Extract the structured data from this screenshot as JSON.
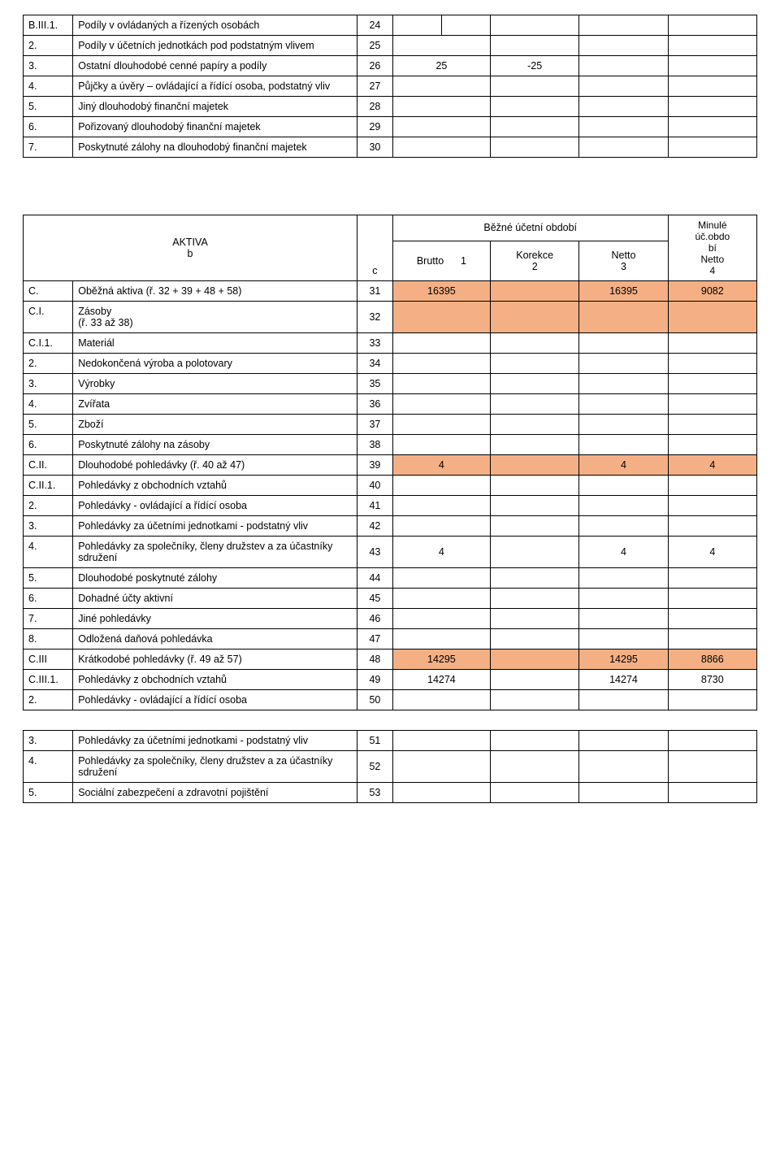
{
  "colors": {
    "highlight": "#f4b084",
    "border": "#000000",
    "bg": "#ffffff"
  },
  "colwidths": {
    "code": 56,
    "name": 320,
    "c": 40,
    "brutto": 110,
    "korekce": 100,
    "netto": 100,
    "minule": 100
  },
  "top": {
    "rows": [
      {
        "code": "B.III.1.",
        "name": "Podíly v ovládaných a řízených osobách",
        "c": "24",
        "brutto": "",
        "bruttoSplit": true,
        "korekce": "",
        "netto": "",
        "minule": ""
      },
      {
        "code": "2.",
        "name": "Podíly v účetních jednotkách pod podstatným vlivem",
        "c": "25",
        "brutto": "",
        "korekce": "",
        "netto": "",
        "minule": ""
      },
      {
        "code": "3.",
        "name": "Ostatní dlouhodobé cenné papíry a podíly",
        "c": "26",
        "brutto": "25",
        "korekce": "-25",
        "netto": "",
        "minule": ""
      },
      {
        "code": "4.",
        "name": "Půjčky a úvěry – ovládající a řídící osoba, podstatný vliv",
        "c": "27",
        "brutto": "",
        "korekce": "",
        "netto": "",
        "minule": ""
      },
      {
        "code": "5.",
        "name": "Jiný dlouhodobý finanční majetek",
        "c": "28",
        "brutto": "",
        "korekce": "",
        "netto": "",
        "minule": ""
      },
      {
        "code": "6.",
        "name": "Pořizovaný dlouhodobý finanční majetek",
        "c": "29",
        "brutto": "",
        "korekce": "",
        "netto": "",
        "minule": ""
      },
      {
        "code": "7.",
        "name": "Poskytnuté zálohy na dlouhodobý finanční majetek",
        "c": "30",
        "brutto": "",
        "korekce": "",
        "netto": "",
        "minule": ""
      }
    ]
  },
  "header": {
    "aktiva_label": "AKTIVA",
    "aktiva_sub": "b",
    "c_label": "c",
    "period_label": "Běžné účetní období",
    "brutto_label": "Brutto",
    "brutto_num": "1",
    "korekce_label": "Korekce",
    "korekce_num": "2",
    "netto_label": "Netto",
    "netto_num": "3",
    "minule_line1": "Minulé",
    "minule_line2": "úč.obdo",
    "minule_line3": "bí",
    "minule_line4": "Netto",
    "minule_line5": "4"
  },
  "bottom": {
    "rows": [
      {
        "code": "C.",
        "name": "Oběžná aktiva                              (ř. 32 + 39 + 48 + 58)",
        "c": "31",
        "brutto": "16395",
        "korekce": "",
        "netto": "16395",
        "minule": "9082",
        "hl": true
      },
      {
        "code": "C.I.",
        "name": "Zásoby\n(ř. 33 až 38)",
        "c": "32",
        "brutto": "",
        "korekce": "",
        "netto": "",
        "minule": "",
        "hl": true
      },
      {
        "code": "C.I.1.",
        "name": "Materiál",
        "c": "33",
        "brutto": "",
        "korekce": "",
        "netto": "",
        "minule": ""
      },
      {
        "code": "2.",
        "name": "Nedokončená výroba a polotovary",
        "c": "34",
        "brutto": "",
        "korekce": "",
        "netto": "",
        "minule": ""
      },
      {
        "code": "3.",
        "name": "Výrobky",
        "c": "35",
        "brutto": "",
        "korekce": "",
        "netto": "",
        "minule": ""
      },
      {
        "code": "4.",
        "name": "Zvířata",
        "c": "36",
        "brutto": "",
        "korekce": "",
        "netto": "",
        "minule": ""
      },
      {
        "code": "5.",
        "name": "Zboží",
        "c": "37",
        "brutto": "",
        "korekce": "",
        "netto": "",
        "minule": ""
      },
      {
        "code": "6.",
        "name": "Poskytnuté zálohy na zásoby",
        "c": "38",
        "brutto": "",
        "korekce": "",
        "netto": "",
        "minule": ""
      },
      {
        "code": "C.II.",
        "name": "Dlouhodobé pohledávky                      (ř. 40 až 47)",
        "c": "39",
        "brutto": "4",
        "korekce": "",
        "netto": "4",
        "minule": "4",
        "hl": true
      },
      {
        "code": "C.II.1.",
        "name": "Pohledávky z obchodních vztahů",
        "c": "40",
        "brutto": "",
        "korekce": "",
        "netto": "",
        "minule": ""
      },
      {
        "code": "2.",
        "name": "Pohledávky -  ovládající a řídící osoba",
        "c": "41",
        "brutto": "",
        "korekce": "",
        "netto": "",
        "minule": ""
      },
      {
        "code": "3.",
        "name": "Pohledávky za účetními jednotkami - podstatný vliv",
        "c": "42",
        "brutto": "",
        "korekce": "",
        "netto": "",
        "minule": ""
      },
      {
        "code": "4.",
        "name": "Pohledávky za společníky, členy družstev a za účastníky sdružení",
        "c": "43",
        "brutto": "4",
        "korekce": "",
        "netto": "4",
        "minule": "4"
      },
      {
        "code": "5.",
        "name": "Dlouhodobé poskytnuté zálohy",
        "c": "44",
        "brutto": "",
        "korekce": "",
        "netto": "",
        "minule": ""
      },
      {
        "code": "6.",
        "name": "Dohadné účty aktivní",
        "c": "45",
        "brutto": "",
        "korekce": "",
        "netto": "",
        "minule": ""
      },
      {
        "code": "7.",
        "name": "Jiné pohledávky",
        "c": "46",
        "brutto": "",
        "korekce": "",
        "netto": "",
        "minule": ""
      },
      {
        "code": "8.",
        "name": "Odložená daňová pohledávka",
        "c": "47",
        "brutto": "",
        "korekce": "",
        "netto": "",
        "minule": ""
      },
      {
        "code": "C.III",
        "name": "Krátkodobé pohledávky               (ř. 49 až 57)",
        "c": "48",
        "brutto": "14295",
        "korekce": "",
        "netto": "14295",
        "minule": "8866",
        "hl": true
      },
      {
        "code": "C.III.1.",
        "name": "Pohledávky z obchodních vztahů",
        "c": "49",
        "brutto": "14274",
        "korekce": "",
        "netto": "14274",
        "minule": "8730"
      },
      {
        "code": "2.",
        "name": "Pohledávky - ovládající a řídící osoba",
        "c": "50",
        "brutto": "",
        "korekce": "",
        "netto": "",
        "minule": ""
      },
      {
        "blank": true
      },
      {
        "code": "3.",
        "name": "Pohledávky za účetními jednotkami - podstatný vliv",
        "c": "51",
        "brutto": "",
        "korekce": "",
        "netto": "",
        "minule": ""
      },
      {
        "code": "4.",
        "name": "Pohledávky za společníky, členy družstev a za účastníky sdružení",
        "c": "52",
        "brutto": "",
        "korekce": "",
        "netto": "",
        "minule": ""
      },
      {
        "code": "5.",
        "name": "Sociální zabezpečení a zdravotní pojištění",
        "c": "53",
        "brutto": "",
        "korekce": "",
        "netto": "",
        "minule": ""
      }
    ]
  }
}
